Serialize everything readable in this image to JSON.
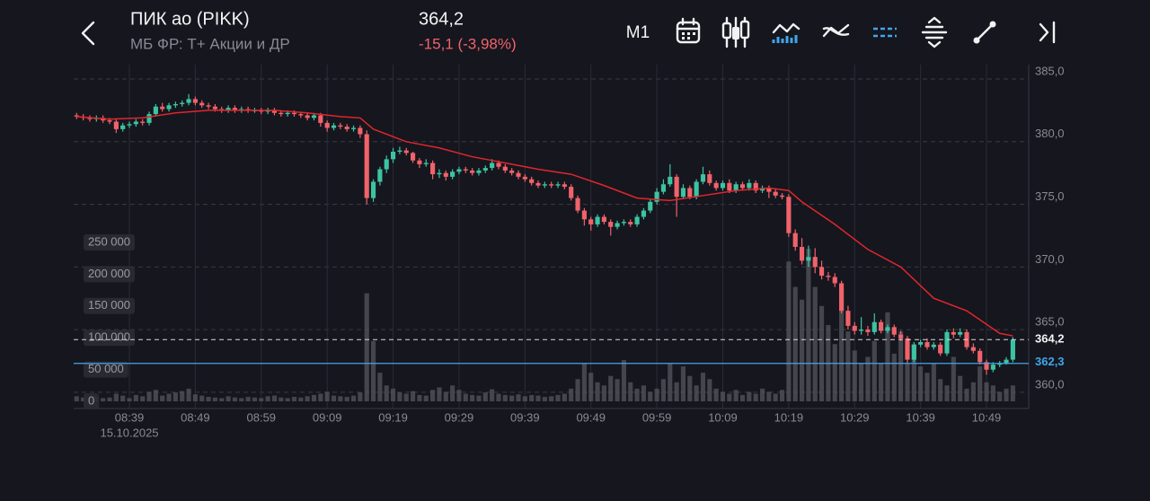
{
  "header": {
    "title": "ПИК ао (PIKK)",
    "subtitle": "МБ ФР: Т+ Акции и ДР",
    "price": "364,2",
    "change": "-15,1 (-3,98%)",
    "timeframe": "M1"
  },
  "chart_data": {
    "type": "candlestick",
    "up_color": "#3cc4a2",
    "down_color": "#f0636b",
    "x": [
      511,
      512,
      513,
      514,
      515,
      516,
      517,
      518,
      519,
      520,
      521,
      522,
      523,
      524,
      525,
      526,
      527,
      528,
      529,
      530,
      531,
      532,
      533,
      534,
      535,
      536,
      537,
      538,
      539,
      540,
      541,
      542,
      543,
      544,
      545,
      546,
      547,
      548,
      549,
      550,
      551,
      552,
      553,
      554,
      555,
      556,
      557,
      558,
      559,
      560,
      561,
      562,
      563,
      564,
      565,
      566,
      567,
      568,
      569,
      570,
      571,
      572,
      573,
      574,
      575,
      576,
      577,
      578,
      579,
      580,
      581,
      582,
      583,
      584,
      585,
      586,
      587,
      588,
      589,
      590,
      591,
      592,
      593,
      594,
      595,
      596,
      597,
      598,
      599,
      600,
      601,
      602,
      603,
      604,
      605,
      606,
      607,
      608,
      609,
      610,
      611,
      612,
      613,
      614,
      615,
      616,
      617,
      618,
      619,
      620,
      621,
      622,
      623,
      624,
      625,
      626,
      627,
      628,
      629,
      630,
      631,
      632,
      633,
      634,
      635,
      636,
      637,
      638,
      639,
      640,
      641,
      642,
      643,
      644,
      645,
      646,
      647,
      648,
      649,
      650,
      651,
      652,
      653
    ],
    "open": [
      382.1,
      382.0,
      381.9,
      381.8,
      381.9,
      381.7,
      381.6,
      381.0,
      381.3,
      381.4,
      381.6,
      381.5,
      382.2,
      382.8,
      382.6,
      382.9,
      383.0,
      383.1,
      383.4,
      383.1,
      382.9,
      382.8,
      382.6,
      382.5,
      382.7,
      382.5,
      382.6,
      382.5,
      382.5,
      382.4,
      382.5,
      382.3,
      382.2,
      382.3,
      382.2,
      382.1,
      381.9,
      382.1,
      381.5,
      381.1,
      381.3,
      381.2,
      381.0,
      381.1,
      380.6,
      375.5,
      376.8,
      377.8,
      378.6,
      379.2,
      379.3,
      379.1,
      378.5,
      378.2,
      378.3,
      377.4,
      377.5,
      377.2,
      377.6,
      377.8,
      377.7,
      377.5,
      377.7,
      377.9,
      378.3,
      378.0,
      377.7,
      377.5,
      377.2,
      377.0,
      376.7,
      376.5,
      376.6,
      376.5,
      376.6,
      376.4,
      375.5,
      374.5,
      373.8,
      373.4,
      374.0,
      373.6,
      373.2,
      373.5,
      373.6,
      373.4,
      374.0,
      374.5,
      375.2,
      376.0,
      376.6,
      377.2,
      375.6,
      376.3,
      375.6,
      376.8,
      377.4,
      376.7,
      376.3,
      376.7,
      376.1,
      376.6,
      376.3,
      376.7,
      376.1,
      376.3,
      376.0,
      375.7,
      375.6,
      372.7,
      371.6,
      370.5,
      370.8,
      370.0,
      369.3,
      369.2,
      368.7,
      366.5,
      365.3,
      364.9,
      365.0,
      364.8,
      365.6,
      364.9,
      365.2,
      364.6,
      364.3,
      362.6,
      363.8,
      364.0,
      363.6,
      363.8,
      363.1,
      364.8,
      364.6,
      364.8,
      363.6,
      363.3,
      362.4,
      361.8,
      362.2,
      362.3,
      362.6
    ],
    "high": [
      382.3,
      382.2,
      382.1,
      382.1,
      382.1,
      381.9,
      381.8,
      381.5,
      381.6,
      381.8,
      381.8,
      382.4,
      383.0,
      383.1,
      383.1,
      383.2,
      383.3,
      383.8,
      383.6,
      383.3,
      383.1,
      383.0,
      382.8,
      382.9,
      382.9,
      382.8,
      382.8,
      382.7,
      382.7,
      382.7,
      382.7,
      382.5,
      382.5,
      382.5,
      382.4,
      382.3,
      382.3,
      382.3,
      381.7,
      381.5,
      381.5,
      381.4,
      381.3,
      381.3,
      380.9,
      377.0,
      378.0,
      378.9,
      379.5,
      379.6,
      379.5,
      379.2,
      378.7,
      378.6,
      378.5,
      377.8,
      377.7,
      377.8,
      378.0,
      378.0,
      377.9,
      377.9,
      378.1,
      378.6,
      378.5,
      378.2,
      377.9,
      377.7,
      377.4,
      377.2,
      376.9,
      376.8,
      376.8,
      376.8,
      376.8,
      376.6,
      375.7,
      374.7,
      374.0,
      374.2,
      374.2,
      373.8,
      373.7,
      373.8,
      373.8,
      374.2,
      374.7,
      375.4,
      376.3,
      377.0,
      378.2,
      377.4,
      376.6,
      376.5,
      377.0,
      378.0,
      377.7,
      376.9,
      376.9,
      377.0,
      376.8,
      376.8,
      377.0,
      376.9,
      376.5,
      376.5,
      376.2,
      375.9,
      375.8,
      373.0,
      372.3,
      371.7,
      371.5,
      370.5,
      369.6,
      369.5,
      368.9,
      366.9,
      365.6,
      366.0,
      365.3,
      366.3,
      365.8,
      365.4,
      365.4,
      364.9,
      364.5,
      364.0,
      364.2,
      364.3,
      364.0,
      364.0,
      365.0,
      365.1,
      365.1,
      365.0,
      363.9,
      363.5,
      362.6,
      362.4,
      362.5,
      362.8,
      364.4
    ],
    "low": [
      381.8,
      381.7,
      381.6,
      381.6,
      381.5,
      381.4,
      380.7,
      380.8,
      381.1,
      381.2,
      381.3,
      381.3,
      382.0,
      382.4,
      382.4,
      382.7,
      382.8,
      382.9,
      382.9,
      382.7,
      382.6,
      382.4,
      382.3,
      382.3,
      382.3,
      382.3,
      382.3,
      382.3,
      382.2,
      382.2,
      382.1,
      382.0,
      382.0,
      382.0,
      381.9,
      381.7,
      381.7,
      381.2,
      380.8,
      380.9,
      381.0,
      380.8,
      380.8,
      380.3,
      375.0,
      375.2,
      376.5,
      377.5,
      378.3,
      379.0,
      378.9,
      378.3,
      377.9,
      378.0,
      377.0,
      377.1,
      376.9,
      377.0,
      377.4,
      377.5,
      377.3,
      377.3,
      377.5,
      377.7,
      377.8,
      377.5,
      377.3,
      377.0,
      376.8,
      376.5,
      376.3,
      376.3,
      376.3,
      376.3,
      376.2,
      375.3,
      374.3,
      373.3,
      372.9,
      373.2,
      373.4,
      372.5,
      373.0,
      373.3,
      373.2,
      373.2,
      373.8,
      374.3,
      375.0,
      375.8,
      376.4,
      374.0,
      375.4,
      375.4,
      375.4,
      376.6,
      376.5,
      376.1,
      376.1,
      375.9,
      375.9,
      376.1,
      376.1,
      375.9,
      375.9,
      375.5,
      375.5,
      375.4,
      372.4,
      371.3,
      370.2,
      370.0,
      369.5,
      369.0,
      368.9,
      368.4,
      366.3,
      365.0,
      364.6,
      364.6,
      364.5,
      364.6,
      364.7,
      364.7,
      364.4,
      364.1,
      362.3,
      362.4,
      363.6,
      363.4,
      363.4,
      362.9,
      362.9,
      364.3,
      364.4,
      363.4,
      363.1,
      362.2,
      361.4,
      361.6,
      362.0,
      362.2,
      362.4
    ],
    "close": [
      382.0,
      381.9,
      381.8,
      381.9,
      381.7,
      381.6,
      381.0,
      381.3,
      381.4,
      381.6,
      381.5,
      382.2,
      382.8,
      382.6,
      382.9,
      383.0,
      383.1,
      383.4,
      383.1,
      382.9,
      382.8,
      382.6,
      382.5,
      382.7,
      382.5,
      382.6,
      382.5,
      382.5,
      382.4,
      382.5,
      382.3,
      382.2,
      382.3,
      382.2,
      382.1,
      381.9,
      382.1,
      381.5,
      381.1,
      381.3,
      381.2,
      381.0,
      381.1,
      380.6,
      375.5,
      376.8,
      377.8,
      378.6,
      379.2,
      379.3,
      379.1,
      378.5,
      378.2,
      378.3,
      377.4,
      377.5,
      377.2,
      377.6,
      377.8,
      377.7,
      377.5,
      377.7,
      377.9,
      378.3,
      378.0,
      377.7,
      377.5,
      377.2,
      377.0,
      376.7,
      376.5,
      376.6,
      376.5,
      376.6,
      376.4,
      375.5,
      374.5,
      373.8,
      373.4,
      374.0,
      373.6,
      373.2,
      373.5,
      373.6,
      373.4,
      374.0,
      374.5,
      375.2,
      376.0,
      376.6,
      377.2,
      375.6,
      376.3,
      375.6,
      376.8,
      377.4,
      376.7,
      376.3,
      376.7,
      376.1,
      376.6,
      376.3,
      376.7,
      376.1,
      376.3,
      376.0,
      375.7,
      375.6,
      372.7,
      371.6,
      370.5,
      370.8,
      370.0,
      369.3,
      369.2,
      368.7,
      366.5,
      365.3,
      364.9,
      365.0,
      364.8,
      365.6,
      364.9,
      365.2,
      364.6,
      364.3,
      362.6,
      363.8,
      364.0,
      363.6,
      363.8,
      363.1,
      364.8,
      364.6,
      364.8,
      363.6,
      363.3,
      362.4,
      361.8,
      362.2,
      362.3,
      362.6,
      364.2
    ],
    "xlim": [
      510.55,
      655.4
    ],
    "xticks": [
      {
        "value": 519,
        "label": "08:39"
      },
      {
        "value": 529,
        "label": "08:49"
      },
      {
        "value": 539,
        "label": "08:59"
      },
      {
        "value": 549,
        "label": "09:09"
      },
      {
        "value": 559,
        "label": "09:19"
      },
      {
        "value": 569,
        "label": "09:29"
      },
      {
        "value": 579,
        "label": "09:39"
      },
      {
        "value": 589,
        "label": "09:49"
      },
      {
        "value": 599,
        "label": "09:59"
      },
      {
        "value": 609,
        "label": "10:09"
      },
      {
        "value": 619,
        "label": "10:19"
      },
      {
        "value": 629,
        "label": "10:29"
      },
      {
        "value": 639,
        "label": "10:39"
      },
      {
        "value": 649,
        "label": "10:49"
      }
    ],
    "date": "15.10.2025",
    "ylim": [
      358.7,
      386.15
    ],
    "yticks": [
      {
        "value": 385,
        "label": "385,0"
      },
      {
        "value": 380,
        "label": "380,0"
      },
      {
        "value": 375,
        "label": "375,0"
      },
      {
        "value": 370,
        "label": "370,0"
      },
      {
        "value": 365,
        "label": "365,0"
      },
      {
        "value": 360,
        "label": "360,0"
      }
    ],
    "grid": true,
    "ma": {
      "color": "#e0262d",
      "x": [
        511,
        516,
        521,
        526,
        531,
        536,
        541,
        546,
        551,
        554,
        556,
        561,
        566,
        571,
        576,
        581,
        586,
        591,
        596,
        601,
        606,
        611,
        616,
        619,
        621,
        626,
        631,
        636,
        641,
        646,
        651,
        653
      ],
      "values": [
        382.0,
        381.8,
        381.9,
        382.3,
        382.5,
        382.5,
        382.5,
        382.3,
        382.0,
        381.9,
        381.0,
        380.0,
        379.5,
        378.8,
        378.3,
        377.8,
        377.4,
        376.5,
        375.5,
        375.3,
        375.7,
        376.1,
        376.3,
        376.1,
        375.2,
        373.4,
        371.4,
        370.0,
        367.5,
        366.5,
        364.7,
        364.5
      ]
    },
    "volume": {
      "color": "#55555e",
      "ylim": [
        -11300,
        529700
      ],
      "yticks": [
        {
          "value": 250000,
          "label": "250 000"
        },
        {
          "value": 200000,
          "label": "200 000"
        },
        {
          "value": 150000,
          "label": "150 000"
        },
        {
          "value": 100000,
          "label": "100 000"
        },
        {
          "value": 50000,
          "label": "50 000"
        },
        0
      ],
      "values": [
        8000,
        6000,
        5000,
        7000,
        5000,
        6000,
        12000,
        9000,
        5000,
        10000,
        8000,
        15000,
        18000,
        9000,
        12000,
        14000,
        16000,
        20000,
        11000,
        9000,
        7000,
        6000,
        5000,
        8000,
        6000,
        5000,
        7000,
        6000,
        5000,
        8000,
        9000,
        6000,
        5000,
        7000,
        6000,
        8000,
        10000,
        12000,
        15000,
        9000,
        8000,
        7000,
        9000,
        14000,
        170000,
        95000,
        45000,
        25000,
        20000,
        14000,
        12000,
        16000,
        10000,
        9000,
        18000,
        22000,
        15000,
        25000,
        18000,
        12000,
        10000,
        9000,
        14000,
        19000,
        12000,
        10000,
        9000,
        11000,
        8000,
        10000,
        9000,
        7000,
        8000,
        10000,
        12000,
        20000,
        35000,
        60000,
        45000,
        30000,
        25000,
        40000,
        35000,
        65000,
        30000,
        20000,
        25000,
        15000,
        20000,
        35000,
        60000,
        30000,
        55000,
        40000,
        25000,
        45000,
        35000,
        20000,
        15000,
        12000,
        18000,
        10000,
        15000,
        12000,
        20000,
        15000,
        12000,
        18000,
        220000,
        180000,
        160000,
        240000,
        180000,
        150000,
        120000,
        90000,
        175000,
        110000,
        80000,
        60000,
        70000,
        95000,
        60000,
        140000,
        75000,
        110000,
        60000,
        90000,
        55000,
        45000,
        60000,
        35000,
        25000,
        70000,
        40000,
        20000,
        30000,
        55000,
        30000,
        25000,
        15000,
        20000,
        25000
      ]
    },
    "last_price": {
      "value": 364.2,
      "label": "364,2"
    },
    "level": {
      "value": 362.3,
      "label": "362,3",
      "color": "#3fa7ea"
    }
  }
}
